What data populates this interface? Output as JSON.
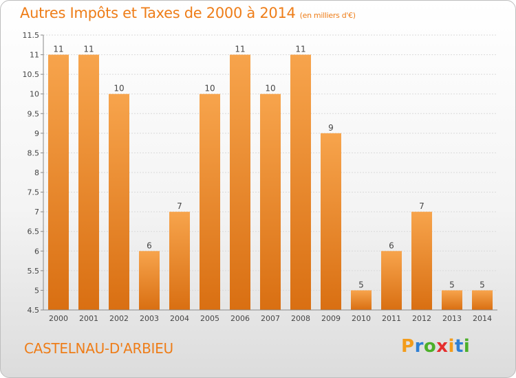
{
  "title": "Autres Impôts et Taxes de 2000 à 2014",
  "subtitle": "(en milliers d'€)",
  "commune": "CASTELNAU-D'ARBIEU",
  "brand": {
    "letters": [
      "P",
      "r",
      "o",
      "x",
      "i",
      "t",
      "i"
    ],
    "colors": [
      "#f39c1b",
      "#2e7fd4",
      "#4caf2a",
      "#e52e2e",
      "#f39c1b",
      "#2e7fd4",
      "#4caf2a"
    ]
  },
  "colors": {
    "accent": "#ee7d18",
    "bar_light": "#f7a44c",
    "bar_dark": "#d96f12"
  },
  "chart_data": {
    "type": "bar",
    "title": "Autres Impôts et Taxes de 2000 à 2014",
    "subtitle": "(en milliers d'€)",
    "xlabel": "",
    "ylabel": "",
    "categories": [
      "2000",
      "2001",
      "2002",
      "2003",
      "2004",
      "2005",
      "2006",
      "2007",
      "2008",
      "2009",
      "2010",
      "2011",
      "2012",
      "2013",
      "2014"
    ],
    "values": [
      11,
      11,
      10,
      6,
      7,
      10,
      11,
      10,
      11,
      9,
      5,
      6,
      7,
      5,
      5
    ],
    "ylim": [
      4.5,
      11.5
    ],
    "yticks": [
      "4.5",
      "5",
      "5.5",
      "6",
      "6.5",
      "7",
      "7.5",
      "8",
      "8.5",
      "9",
      "9.5",
      "10",
      "10.5",
      "11",
      "11.5"
    ],
    "grid": true,
    "legend": "none"
  }
}
